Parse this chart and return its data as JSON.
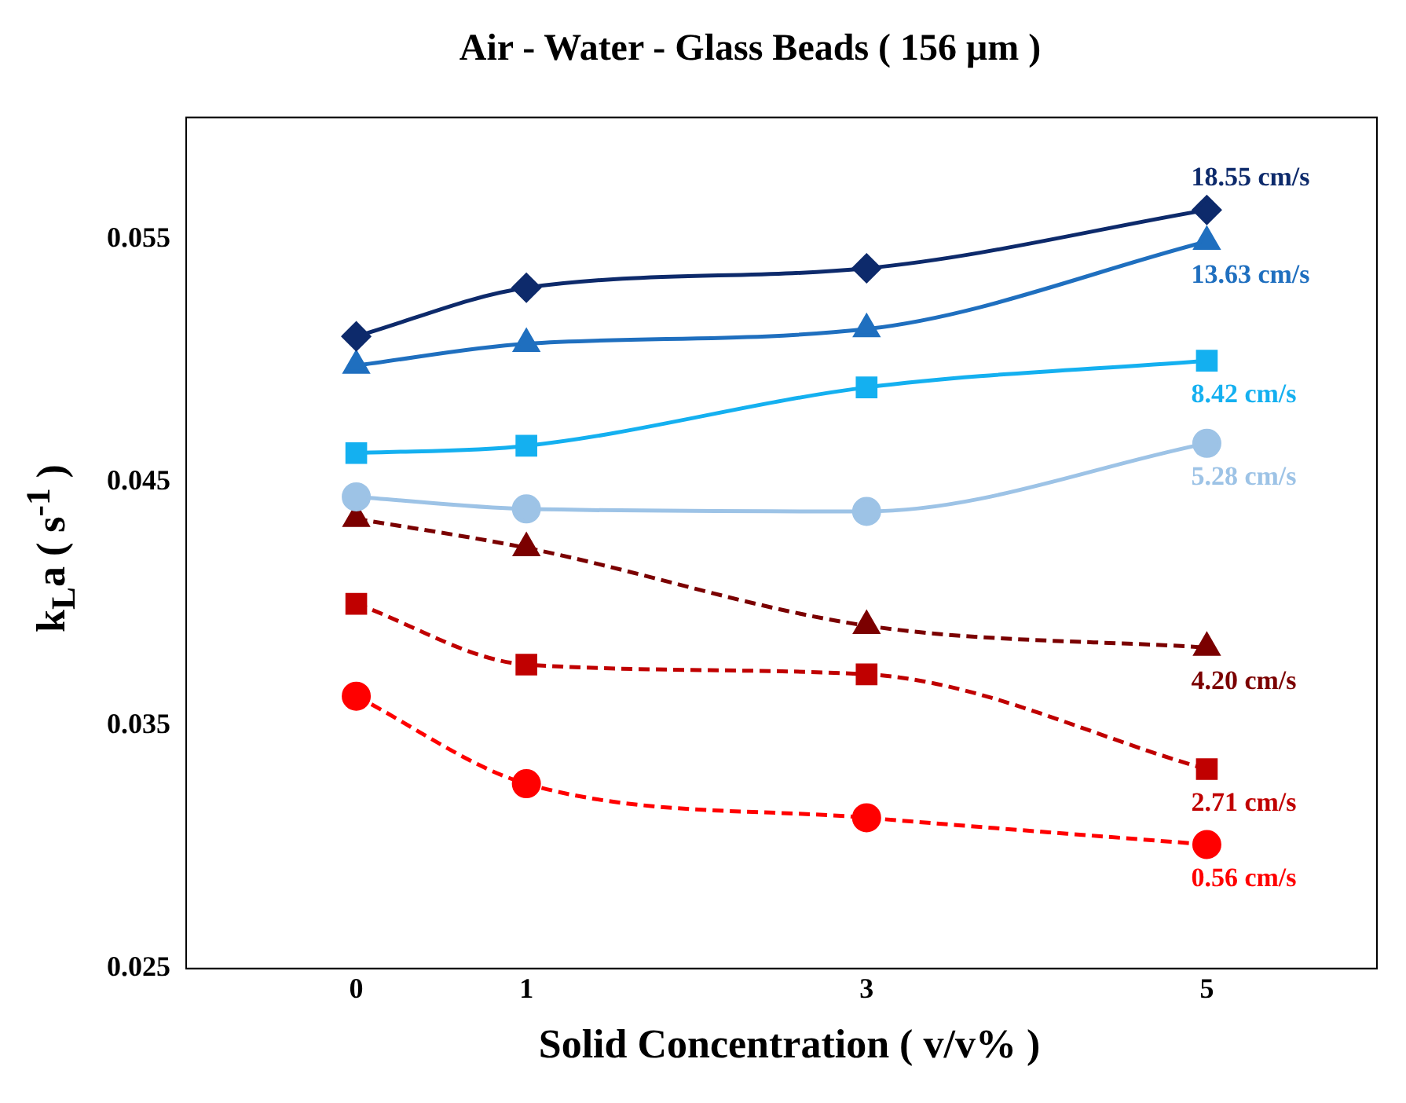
{
  "chart_data": {
    "type": "line",
    "title": "Air - Water - Glass Beads ( 156 μm )",
    "xlabel": "Solid Concentration ( v/v% )",
    "ylabel": "k$_{L}$a ( s$^{-1}$ )",
    "x": [
      0,
      1,
      3,
      5
    ],
    "xlim": [
      -1,
      6
    ],
    "xticks": [
      0,
      1,
      3,
      5
    ],
    "ylim": [
      0.025,
      0.06
    ],
    "yticks": [
      0.025,
      0.035,
      0.045,
      0.055
    ],
    "grid": false,
    "legend": false,
    "series": [
      {
        "name": "18.55 cm/s",
        "color": "#0d2a6b",
        "marker": "diamond",
        "line_style": "solid",
        "values": [
          0.051,
          0.053,
          0.0538,
          0.0562
        ]
      },
      {
        "name": "13.63 cm/s",
        "color": "#1f6fbf",
        "marker": "triangle",
        "line_style": "solid",
        "values": [
          0.0498,
          0.0507,
          0.0513,
          0.0549
        ]
      },
      {
        "name": "8.42 cm/s",
        "color": "#14b0f0",
        "marker": "square",
        "line_style": "solid",
        "values": [
          0.0462,
          0.0465,
          0.0489,
          0.05
        ]
      },
      {
        "name": "5.28 cm/s",
        "color": "#9dc3e6",
        "marker": "circle",
        "line_style": "solid",
        "values": [
          0.0444,
          0.0439,
          0.0438,
          0.0466
        ]
      },
      {
        "name": "4.20 cm/s",
        "color": "#7b0000",
        "marker": "triangle",
        "line_style": "dashed",
        "values": [
          0.0435,
          0.0423,
          0.0391,
          0.0382
        ]
      },
      {
        "name": "2.71 cm/s",
        "color": "#c00000",
        "marker": "square",
        "line_style": "dashed",
        "values": [
          0.04,
          0.0375,
          0.0371,
          0.0332
        ]
      },
      {
        "name": "0.56 cm/s",
        "color": "#ff0000",
        "marker": "circle",
        "line_style": "dashed",
        "values": [
          0.0362,
          0.0326,
          0.0312,
          0.0301
        ]
      }
    ]
  }
}
